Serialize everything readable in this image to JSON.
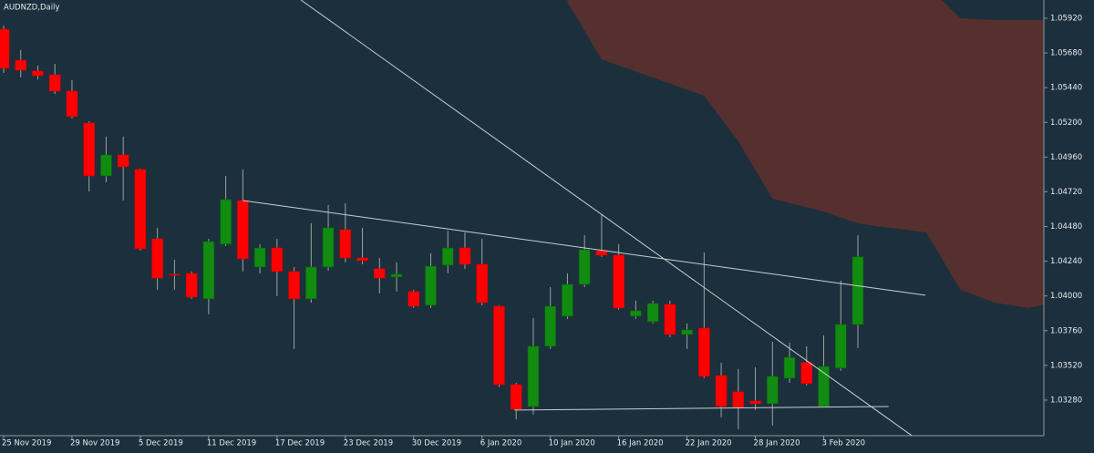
{
  "chart_data": {
    "type": "candlestick",
    "title": "AUDNZD,Daily",
    "categories": [
      "25 Nov 2019",
      null,
      null,
      null,
      "29 Nov 2019",
      null,
      null,
      null,
      "5 Dec 2019",
      null,
      null,
      null,
      "11 Dec 2019",
      null,
      null,
      null,
      "17 Dec 2019",
      null,
      null,
      null,
      "23 Dec 2019",
      null,
      null,
      null,
      "30 Dec 2019",
      null,
      null,
      null,
      "6 Jan 2020",
      null,
      null,
      null,
      "10 Jan 2020",
      null,
      null,
      null,
      "16 Jan 2020",
      null,
      null,
      null,
      "22 Jan 2020",
      null,
      null,
      null,
      "28 Jan 2020",
      null,
      null,
      null,
      "3 Feb 2020",
      null,
      null
    ],
    "open": [
      1.05844,
      1.0563,
      1.05555,
      1.05529,
      1.05416,
      1.05196,
      1.0483,
      1.04975,
      1.04874,
      1.04395,
      1.0415,
      1.04156,
      1.0398,
      1.04358,
      1.0466,
      1.042,
      1.04332,
      1.04169,
      1.0398,
      1.042,
      1.04458,
      1.04263,
      1.04188,
      1.04131,
      1.0403,
      1.03936,
      1.04213,
      1.04332,
      1.04219,
      1.03929,
      1.03387,
      1.03236,
      1.03652,
      1.0386,
      1.0408,
      1.04313,
      1.04282,
      1.0386,
      1.03822,
      1.03942,
      1.03734,
      1.03778,
      1.0345,
      1.03337,
      1.03274,
      1.03255,
      1.03431,
      1.03539,
      1.03236,
      1.03501,
      1.03803
    ],
    "high": [
      1.0587,
      1.057,
      1.05592,
      1.05605,
      1.05492,
      1.05208,
      1.05101,
      1.05101,
      1.0488,
      1.04471,
      1.04251,
      1.04169,
      1.04395,
      1.0483,
      1.04874,
      1.04358,
      1.04395,
      1.042,
      1.04503,
      1.04629,
      1.04641,
      1.04471,
      1.04263,
      1.04232,
      1.04043,
      1.04295,
      1.04452,
      1.0444,
      1.04395,
      1.03936,
      1.034,
      1.03847,
      1.04061,
      1.04156,
      1.04421,
      1.04566,
      1.04358,
      1.03967,
      1.03967,
      1.03967,
      1.03809,
      1.04301,
      1.03539,
      1.03494,
      1.03507,
      1.03683,
      1.03677,
      1.03652,
      1.03728,
      1.04106,
      1.04421
    ],
    "low": [
      1.05542,
      1.05511,
      1.05498,
      1.05397,
      1.05227,
      1.04723,
      1.04786,
      1.0466,
      1.04314,
      1.04043,
      1.04043,
      1.0398,
      1.03873,
      1.04345,
      1.04169,
      1.04156,
      1.03999,
      1.03633,
      1.03954,
      1.04175,
      1.04232,
      1.04219,
      1.04017,
      1.0403,
      1.03917,
      1.03917,
      1.04156,
      1.04188,
      1.03936,
      1.03371,
      1.03148,
      1.03181,
      1.03633,
      1.03841,
      1.04061,
      1.0427,
      1.03904,
      1.03841,
      1.03809,
      1.03715,
      1.03633,
      1.03432,
      1.03161,
      1.03079,
      1.03211,
      1.03104,
      1.034,
      1.03381,
      1.03236,
      1.03482,
      1.03639
    ],
    "close": [
      1.05574,
      1.05561,
      1.05523,
      1.05416,
      1.0524,
      1.0483,
      1.04975,
      1.04893,
      1.04326,
      1.04124,
      1.04143,
      1.03992,
      1.04376,
      1.04666,
      1.04257,
      1.04332,
      1.04169,
      1.0398,
      1.042,
      1.04471,
      1.04263,
      1.04244,
      1.04124,
      1.0415,
      1.03929,
      1.04206,
      1.04332,
      1.04219,
      1.03954,
      1.03387,
      1.03217,
      1.03652,
      1.03929,
      1.0408,
      1.0432,
      1.04282,
      1.03917,
      1.03898,
      1.03948,
      1.03734,
      1.03765,
      1.03444,
      1.03236,
      1.0323,
      1.03255,
      1.03444,
      1.03576,
      1.03394,
      1.03513,
      1.03803,
      1.0427
    ],
    "up_color": "#118c11",
    "down_color": "#ff0000",
    "wick_color": "#9aa59a",
    "background": "#1c2f3d",
    "ylim": [
      1.03034,
      1.06046
    ],
    "yticks": [
      {
        "value": 1.0592,
        "label": "1.05920"
      },
      {
        "value": 1.0568,
        "label": "1.05680"
      },
      {
        "value": 1.0544,
        "label": "1.05440"
      },
      {
        "value": 1.052,
        "label": "1.05200"
      },
      {
        "value": 1.0496,
        "label": "1.04960"
      },
      {
        "value": 1.0472,
        "label": "1.04720"
      },
      {
        "value": 1.0448,
        "label": "1.04480"
      },
      {
        "value": 1.0424,
        "label": "1.04240"
      },
      {
        "value": 1.04,
        "label": "1.04000"
      },
      {
        "value": 1.0376,
        "label": "1.03760"
      },
      {
        "value": 1.0352,
        "label": "1.03520"
      },
      {
        "value": 1.0328,
        "label": "1.03280"
      }
    ],
    "cloud": {
      "color": "#56302f",
      "x": [
        33,
        35,
        38,
        41,
        43,
        45,
        48,
        50,
        51,
        54,
        56,
        58,
        60,
        61
      ],
      "upper": [
        1.062,
        1.062,
        1.062,
        1.062,
        1.062,
        1.062,
        1.062,
        1.062,
        1.062,
        1.0615,
        1.0592,
        1.05907,
        1.05907,
        1.05907
      ],
      "lower": [
        1.06033,
        1.05636,
        1.0551,
        1.05384,
        1.05069,
        1.04673,
        1.04584,
        1.04502,
        1.04484,
        1.0444,
        1.04043,
        1.03954,
        1.03917,
        1.03942
      ]
    },
    "lines": [
      {
        "x": [
          17.4,
          53.15
        ],
        "values": [
          1.06046,
          1.03035
        ]
      },
      {
        "x": [
          14,
          53.95
        ],
        "values": [
          1.0466,
          1.04005
        ]
      },
      {
        "x": [
          29.9,
          51.8
        ],
        "values": [
          1.03211,
          1.03236
        ]
      }
    ],
    "line_color": "#c8d0d0"
  }
}
